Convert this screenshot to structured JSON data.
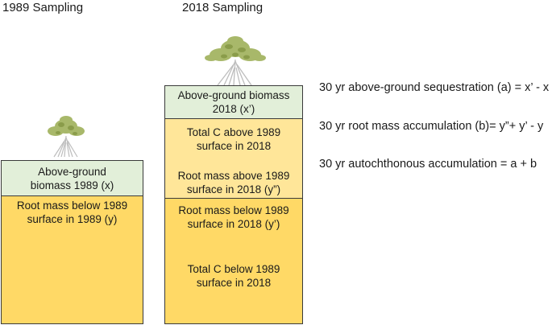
{
  "headings": {
    "left": "1989 Sampling",
    "right": "2018 Sampling"
  },
  "column_1989": {
    "above_label_line1": "Above-ground",
    "above_label_line2": "biomass 1989 (x)",
    "below_label_line1": "Root mass below 1989",
    "below_label_line2": "surface in 1989 (y)"
  },
  "column_2018": {
    "above_label_line1": "Above-ground biomass",
    "above_label_line2": "2018 (x’)",
    "total_above_line1": "Total C above 1989",
    "total_above_line2": "surface in 2018",
    "root_above_line1": "Root mass above 1989",
    "root_above_line2": "surface in 2018 (y”)",
    "root_below_line1": "Root mass below 1989",
    "root_below_line2": "surface in 2018 (y’)",
    "total_below_line1": "Total C below 1989",
    "total_below_line2": "surface in 2018"
  },
  "equations": [
    "30 yr above-ground sequestration (a) = x’ - x",
    "30 yr root mass accumulation (b)= y”+ y’ - y",
    "30 yr autochthonous accumulation = a + b"
  ],
  "colors": {
    "biomass_green": "#e2efd9",
    "soil_yellow": "#ffd966",
    "light_yellow": "#ffe699"
  },
  "icons": [
    "mangrove-tree-icon"
  ]
}
